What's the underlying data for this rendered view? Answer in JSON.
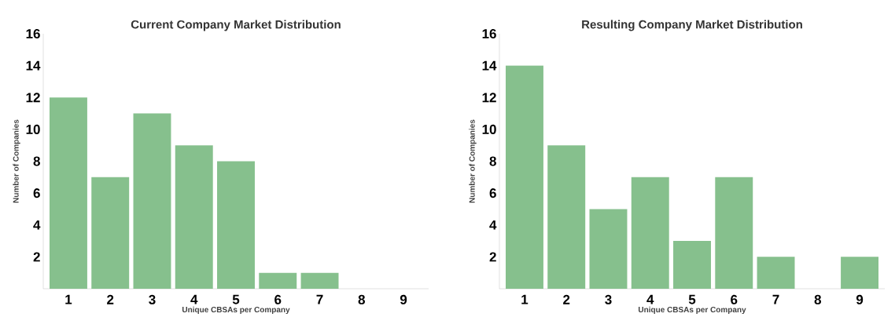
{
  "chart_data": [
    {
      "type": "bar",
      "title": "Current Company Market Distribution",
      "xlabel": "Unique CBSAs per Company",
      "ylabel": "Number of Companies",
      "categories": [
        "1",
        "2",
        "3",
        "4",
        "5",
        "6",
        "7",
        "8",
        "9"
      ],
      "values": [
        12,
        7,
        11,
        9,
        8,
        1,
        1,
        0,
        0
      ],
      "color": "#86c08d",
      "ylim": [
        0,
        16
      ],
      "yticks": [
        2,
        4,
        6,
        8,
        10,
        12,
        14,
        16
      ]
    },
    {
      "type": "bar",
      "title": "Resulting Company Market Distribution",
      "xlabel": "Unique CBSAs per Company",
      "ylabel": "Number of Companies",
      "categories": [
        "1",
        "2",
        "3",
        "4",
        "5",
        "6",
        "7",
        "8",
        "9"
      ],
      "values": [
        14,
        9,
        5,
        7,
        3,
        7,
        2,
        0,
        2
      ],
      "color": "#86c08d",
      "ylim": [
        0,
        16
      ],
      "yticks": [
        2,
        4,
        6,
        8,
        10,
        12,
        14,
        16
      ]
    }
  ]
}
